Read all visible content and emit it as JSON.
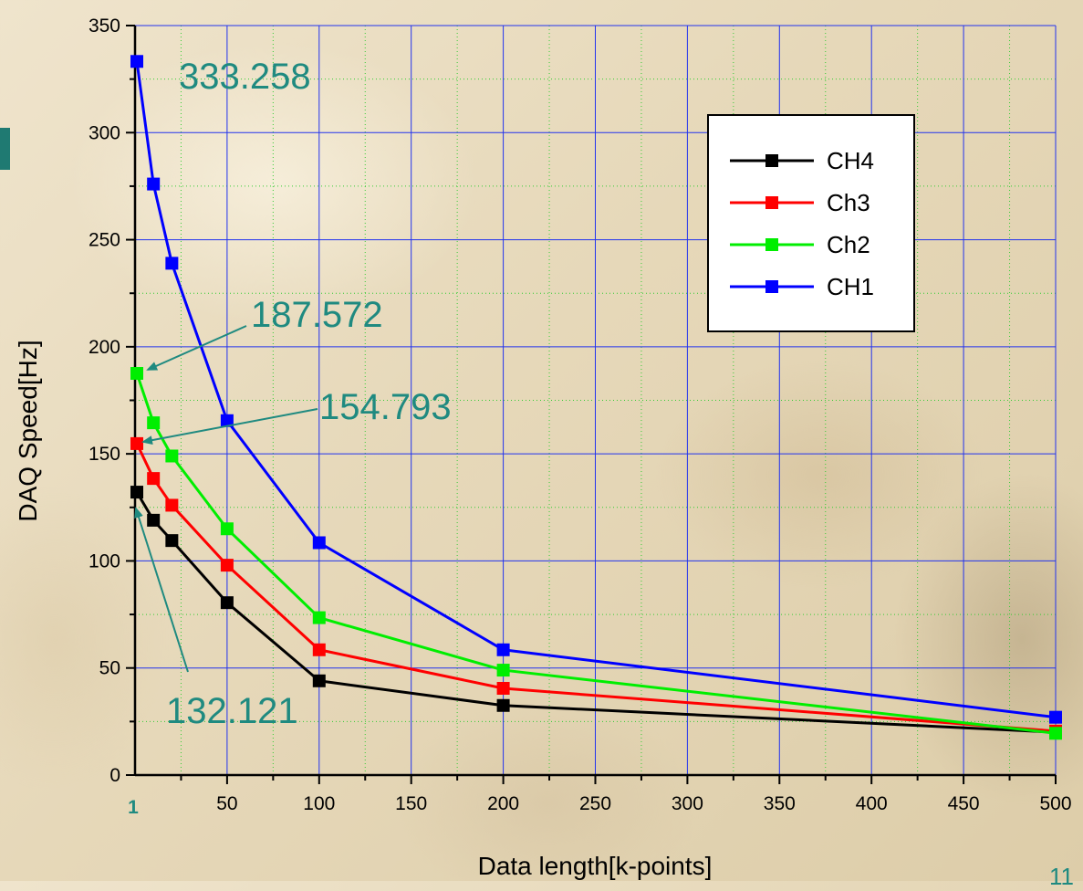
{
  "slide": {
    "page_number": "11"
  },
  "chart_data": {
    "type": "line",
    "title": "",
    "xlabel": "Data length[k-points]",
    "ylabel": "DAQ Speed[Hz]",
    "xlim": [
      0,
      500
    ],
    "ylim": [
      0,
      350
    ],
    "x_ticks": [
      50,
      100,
      150,
      200,
      250,
      300,
      350,
      400,
      450,
      500
    ],
    "x_first_tick_label": "1",
    "y_ticks": [
      0,
      50,
      100,
      150,
      200,
      250,
      300,
      350
    ],
    "grid": true,
    "legend_position": "top-right",
    "series": [
      {
        "name": "CH4",
        "color": "#000000",
        "x": [
          1,
          10,
          20,
          50,
          100,
          200,
          500
        ],
        "y": [
          132.121,
          119,
          109.5,
          80.5,
          44,
          32.5,
          20
        ]
      },
      {
        "name": "Ch3",
        "color": "#ff0000",
        "x": [
          1,
          10,
          20,
          50,
          100,
          200,
          500
        ],
        "y": [
          154.793,
          138.5,
          126,
          98,
          58.5,
          40.5,
          20.5
        ]
      },
      {
        "name": "Ch2",
        "color": "#00ee00",
        "x": [
          1,
          10,
          20,
          50,
          100,
          200,
          500
        ],
        "y": [
          187.572,
          164.5,
          149,
          115,
          73.5,
          49,
          19.5
        ]
      },
      {
        "name": "CH1",
        "color": "#0000ff",
        "x": [
          1,
          10,
          20,
          50,
          100,
          200,
          500
        ],
        "y": [
          333.258,
          276,
          239,
          165.5,
          108.5,
          58.5,
          27
        ]
      }
    ],
    "annotations": [
      {
        "text": "333.258",
        "series": "CH1",
        "x": 1,
        "y": 333.258,
        "arrow": false
      },
      {
        "text": "187.572",
        "series": "Ch2",
        "x": 1,
        "y": 187.572,
        "arrow": true
      },
      {
        "text": "154.793",
        "series": "Ch3",
        "x": 1,
        "y": 154.793,
        "arrow": true
      },
      {
        "text": "132.121",
        "series": "CH4",
        "x": 1,
        "y": 132.121,
        "arrow": true
      }
    ],
    "annotation_color": "#1f8a80"
  }
}
